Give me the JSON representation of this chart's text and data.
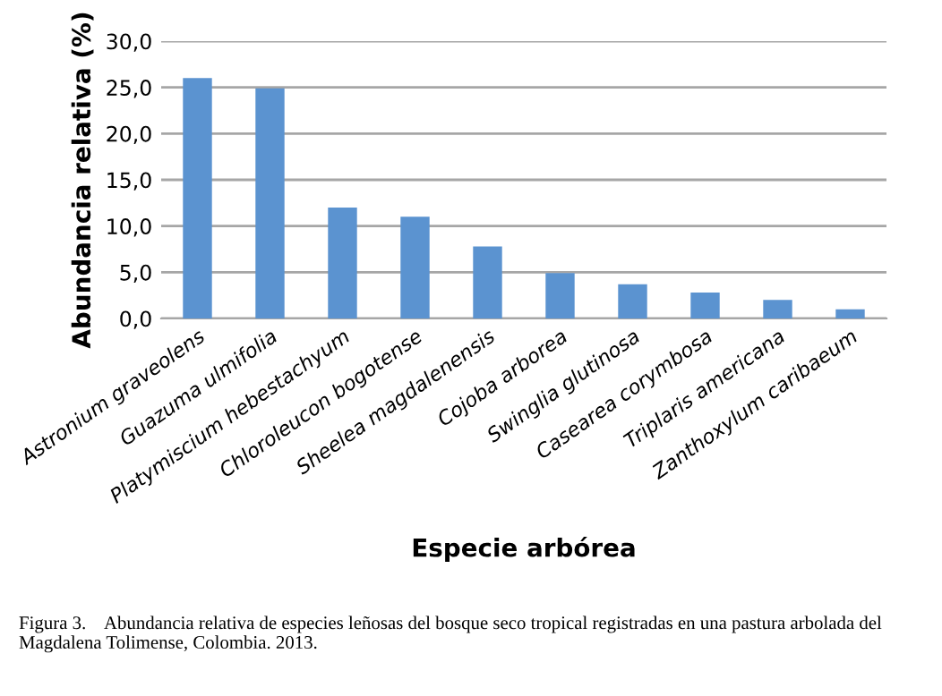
{
  "chart_data": {
    "type": "bar",
    "xlabel": "Especie arbórea",
    "ylabel": "Abundancia relativa (%)",
    "categories": [
      "Astronium graveolens",
      "Guazuma ulmifolia",
      "Platymiscium hebestachyum",
      "Chloroleucon bogotense",
      "Sheelea magdalenensis",
      "Cojoba arborea",
      "Swinglia glutinosa",
      "Casearea corymbosa",
      "Triplaris americana",
      "Zanthoxylum caribaeum"
    ],
    "values": [
      26.0,
      24.9,
      12.0,
      11.0,
      7.8,
      4.9,
      3.7,
      2.8,
      2.0,
      1.0
    ],
    "color": "#5b93d0",
    "ylim": [
      0,
      30
    ],
    "yticks": [
      {
        "value": 0,
        "label": "0,0"
      },
      {
        "value": 5,
        "label": "5,0"
      },
      {
        "value": 10,
        "label": "10,0"
      },
      {
        "value": 15,
        "label": "15,0"
      },
      {
        "value": 20,
        "label": "20,0"
      },
      {
        "value": 25,
        "label": "25,0"
      },
      {
        "value": 30,
        "label": "30,0"
      }
    ],
    "grid": "y",
    "legend": false,
    "annotations": [
      "Figura 3.    Abundancia relativa de especies leñosas del bosque seco tropical registradas en una pastura arbolada del Magdalena Tolimense, Colombia. 2013."
    ]
  }
}
